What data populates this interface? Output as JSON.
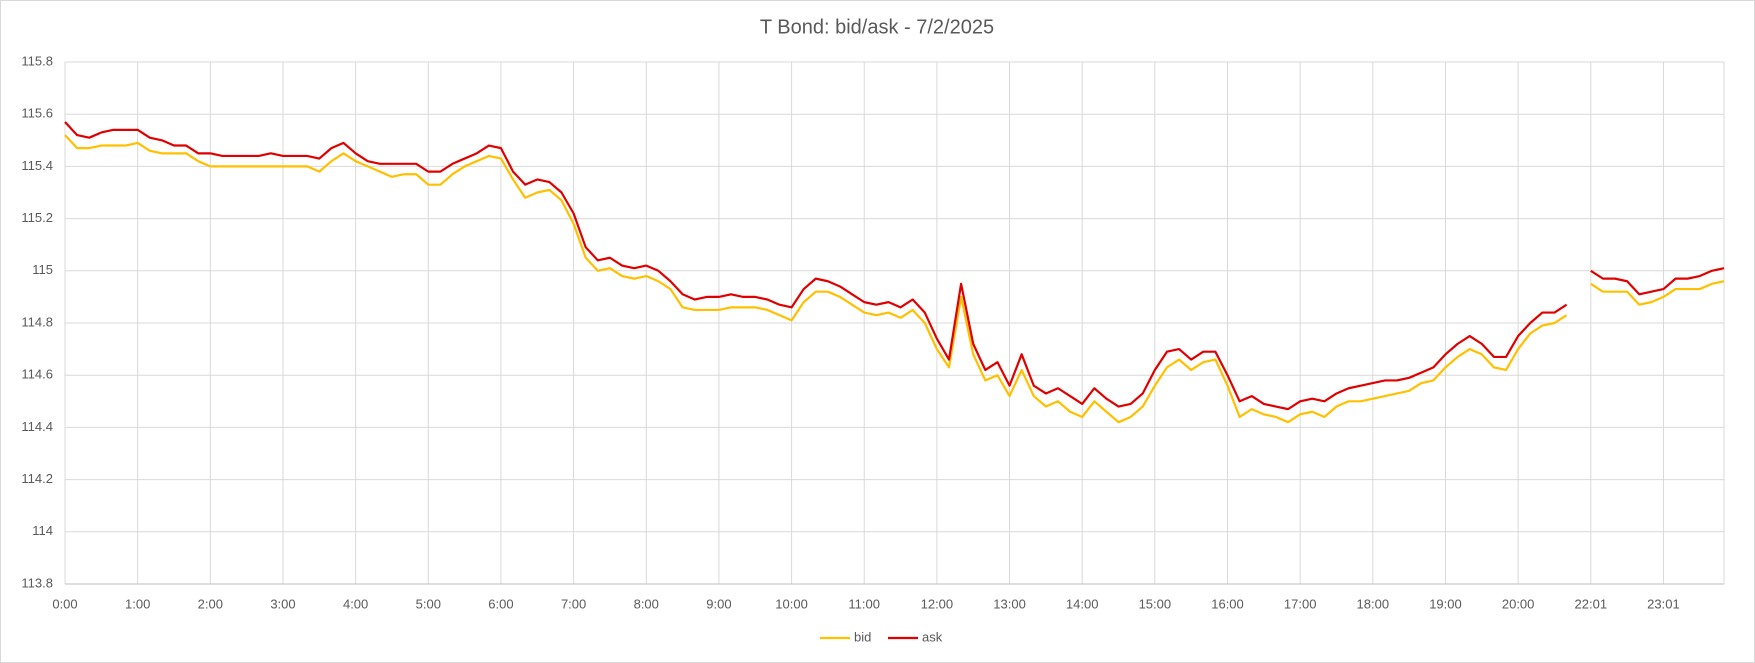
{
  "chart_data": {
    "type": "line",
    "title": "T Bond: bid/ask - 7/2/2025",
    "categories": [
      "0:00",
      null,
      null,
      null,
      null,
      null,
      "1:00",
      null,
      null,
      null,
      null,
      null,
      "2:00",
      null,
      null,
      null,
      null,
      null,
      "3:00",
      null,
      null,
      null,
      null,
      null,
      "4:00",
      null,
      null,
      null,
      null,
      null,
      "5:00",
      null,
      null,
      null,
      null,
      null,
      "6:00",
      null,
      null,
      null,
      null,
      null,
      "7:00",
      null,
      null,
      null,
      null,
      null,
      "8:00",
      null,
      null,
      null,
      null,
      null,
      "9:00",
      null,
      null,
      null,
      null,
      null,
      "10:00",
      null,
      null,
      null,
      null,
      null,
      "11:00",
      null,
      null,
      null,
      null,
      null,
      "12:00",
      null,
      null,
      null,
      null,
      null,
      "13:00",
      null,
      null,
      null,
      null,
      null,
      "14:00",
      null,
      null,
      null,
      null,
      null,
      "15:00",
      null,
      null,
      null,
      null,
      null,
      "16:00",
      null,
      null,
      null,
      null,
      null,
      "17:00",
      null,
      null,
      null,
      null,
      null,
      "18:00",
      null,
      null,
      null,
      null,
      null,
      "19:00",
      null,
      null,
      null,
      null,
      null,
      "20:00",
      null,
      null,
      null,
      null,
      null,
      "22:01",
      null,
      null,
      null,
      null,
      null,
      "23:01",
      null,
      null,
      null,
      null,
      null
    ],
    "series": [
      {
        "name": "bid",
        "color": "#ffc000",
        "values": [
          115.52,
          115.47,
          115.47,
          115.48,
          115.48,
          115.48,
          115.49,
          115.46,
          115.45,
          115.45,
          115.45,
          115.42,
          115.4,
          115.4,
          115.4,
          115.4,
          115.4,
          115.4,
          115.4,
          115.4,
          115.4,
          115.38,
          115.42,
          115.45,
          115.42,
          115.4,
          115.38,
          115.36,
          115.37,
          115.37,
          115.33,
          115.33,
          115.37,
          115.4,
          115.42,
          115.44,
          115.43,
          115.35,
          115.28,
          115.3,
          115.31,
          115.27,
          115.18,
          115.05,
          115.0,
          115.01,
          114.98,
          114.97,
          114.98,
          114.96,
          114.93,
          114.86,
          114.85,
          114.85,
          114.85,
          114.86,
          114.86,
          114.86,
          114.85,
          114.83,
          114.81,
          114.88,
          114.92,
          114.92,
          114.9,
          114.87,
          114.84,
          114.83,
          114.84,
          114.82,
          114.85,
          114.8,
          114.7,
          114.63,
          114.9,
          114.68,
          114.58,
          114.6,
          114.52,
          114.62,
          114.52,
          114.48,
          114.5,
          114.46,
          114.44,
          114.5,
          114.46,
          114.42,
          114.44,
          114.48,
          114.56,
          114.63,
          114.66,
          114.62,
          114.65,
          114.66,
          114.56,
          114.44,
          114.47,
          114.45,
          114.44,
          114.42,
          114.45,
          114.46,
          114.44,
          114.48,
          114.5,
          114.5,
          114.51,
          114.52,
          114.53,
          114.54,
          114.57,
          114.58,
          114.63,
          114.67,
          114.7,
          114.68,
          114.63,
          114.62,
          114.7,
          114.76,
          114.79,
          114.8,
          114.83,
          null,
          114.95,
          114.92,
          114.92,
          114.92,
          114.87,
          114.88,
          114.9,
          114.93,
          114.93,
          114.93,
          114.95,
          114.96
        ]
      },
      {
        "name": "ask",
        "color": "#e00000",
        "values": [
          115.57,
          115.52,
          115.51,
          115.53,
          115.54,
          115.54,
          115.54,
          115.51,
          115.5,
          115.48,
          115.48,
          115.45,
          115.45,
          115.44,
          115.44,
          115.44,
          115.44,
          115.45,
          115.44,
          115.44,
          115.44,
          115.43,
          115.47,
          115.49,
          115.45,
          115.42,
          115.41,
          115.41,
          115.41,
          115.41,
          115.38,
          115.38,
          115.41,
          115.43,
          115.45,
          115.48,
          115.47,
          115.38,
          115.33,
          115.35,
          115.34,
          115.3,
          115.22,
          115.09,
          115.04,
          115.05,
          115.02,
          115.01,
          115.02,
          115.0,
          114.96,
          114.91,
          114.89,
          114.9,
          114.9,
          114.91,
          114.9,
          114.9,
          114.89,
          114.87,
          114.86,
          114.93,
          114.97,
          114.96,
          114.94,
          114.91,
          114.88,
          114.87,
          114.88,
          114.86,
          114.89,
          114.84,
          114.74,
          114.66,
          114.95,
          114.72,
          114.62,
          114.65,
          114.56,
          114.68,
          114.56,
          114.53,
          114.55,
          114.52,
          114.49,
          114.55,
          114.51,
          114.48,
          114.49,
          114.53,
          114.62,
          114.69,
          114.7,
          114.66,
          114.69,
          114.69,
          114.6,
          114.5,
          114.52,
          114.49,
          114.48,
          114.47,
          114.5,
          114.51,
          114.5,
          114.53,
          114.55,
          114.56,
          114.57,
          114.58,
          114.58,
          114.59,
          114.61,
          114.63,
          114.68,
          114.72,
          114.75,
          114.72,
          114.67,
          114.67,
          114.75,
          114.8,
          114.84,
          114.84,
          114.87,
          null,
          115.0,
          114.97,
          114.97,
          114.96,
          114.91,
          114.92,
          114.93,
          114.97,
          114.97,
          114.98,
          115.0,
          115.01
        ]
      }
    ],
    "ylim": [
      113.8,
      115.8
    ],
    "yticks": [
      113.8,
      114,
      114.2,
      114.4,
      114.6,
      114.8,
      115,
      115.2,
      115.4,
      115.6,
      115.8
    ],
    "grid": true,
    "legend": "bottom"
  }
}
